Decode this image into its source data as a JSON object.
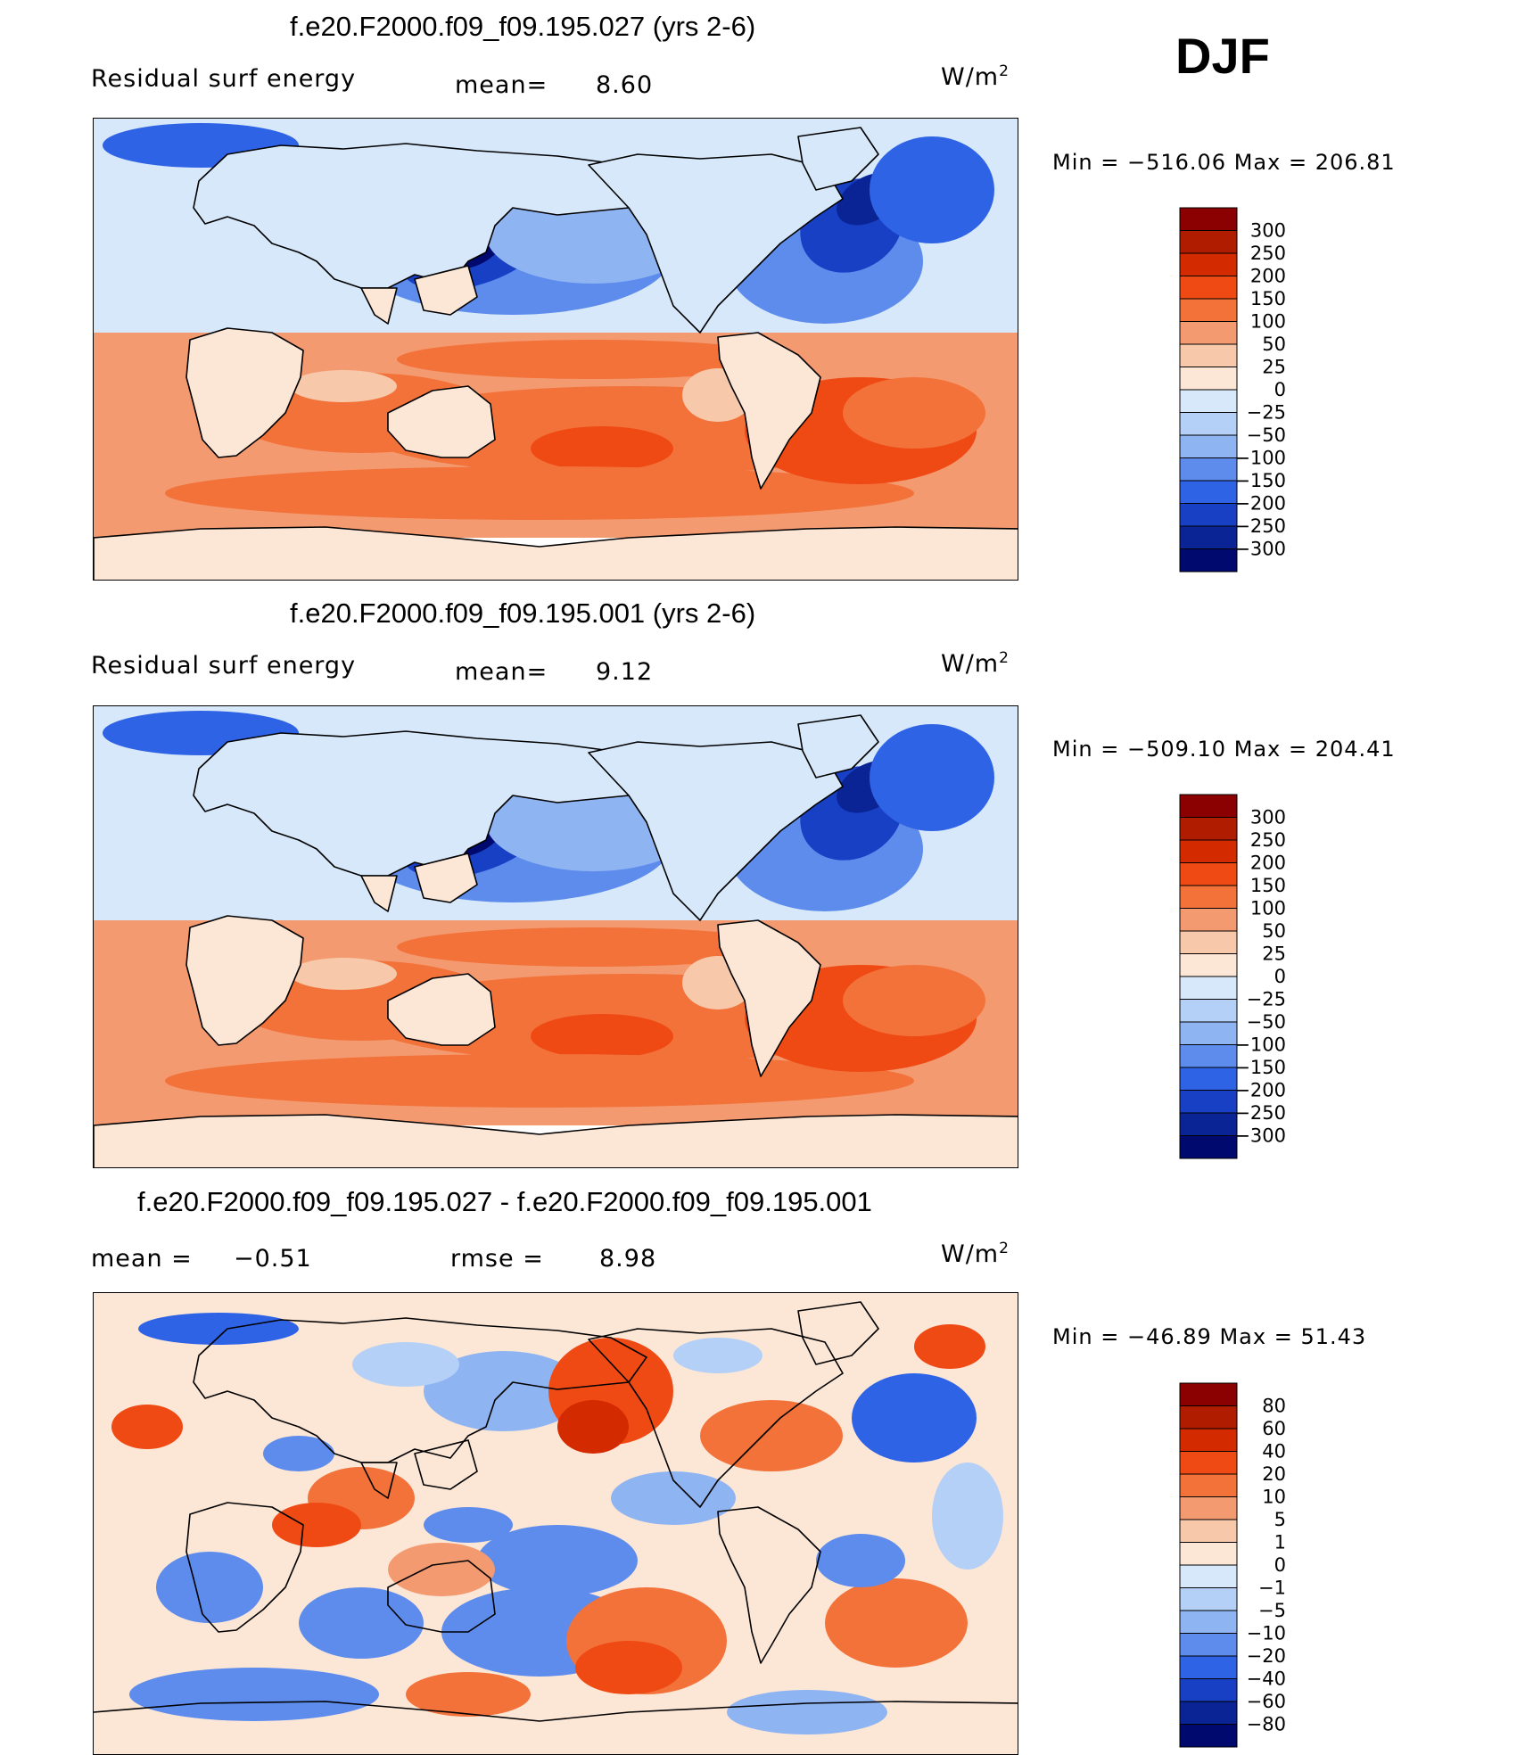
{
  "season": "DJF",
  "chart_data": [
    {
      "type": "heatmap",
      "title": "f.e20.F2000.f09_f09.195.027 (yrs 2-6)",
      "variable": "Residual surf energy",
      "stat1_label": "mean=",
      "stat1_value": "8.60",
      "units_base": "W/m",
      "units_exp": "2",
      "min_label": "Min",
      "min_value": "−516.06",
      "max_label": "Max",
      "max_value": "206.81",
      "colorbar_labels": [
        "300",
        "250",
        "200",
        "150",
        "100",
        "50",
        "25",
        "0",
        "−25",
        "−50",
        "−100",
        "−150",
        "−200",
        "−250",
        "−300"
      ],
      "colors": [
        "#8b0000",
        "#b01c00",
        "#d42a00",
        "#f04a14",
        "#f2723a",
        "#f49a70",
        "#f8c8ab",
        "#fce6d6",
        "#d6e8fa",
        "#b4d0f7",
        "#8fb4f2",
        "#5d8ced",
        "#2f63e6",
        "#1740c4",
        "#0a2496",
        "#000a6e"
      ]
    },
    {
      "type": "heatmap",
      "title": "f.e20.F2000.f09_f09.195.001 (yrs 2-6)",
      "variable": "Residual surf energy",
      "stat1_label": "mean=",
      "stat1_value": "9.12",
      "units_base": "W/m",
      "units_exp": "2",
      "min_label": "Min",
      "min_value": "−509.10",
      "max_label": "Max",
      "max_value": "204.41",
      "colorbar_labels": [
        "300",
        "250",
        "200",
        "150",
        "100",
        "50",
        "25",
        "0",
        "−25",
        "−50",
        "−100",
        "−150",
        "−200",
        "−250",
        "−300"
      ],
      "colors": [
        "#8b0000",
        "#b01c00",
        "#d42a00",
        "#f04a14",
        "#f2723a",
        "#f49a70",
        "#f8c8ab",
        "#fce6d6",
        "#d6e8fa",
        "#b4d0f7",
        "#8fb4f2",
        "#5d8ced",
        "#2f63e6",
        "#1740c4",
        "#0a2496",
        "#000a6e"
      ]
    },
    {
      "type": "heatmap",
      "title": "f.e20.F2000.f09_f09.195.027 - f.e20.F2000.f09_f09.195.001",
      "stat1_label": "mean =",
      "stat1_value": "−0.51",
      "stat2_label": "rmse =",
      "stat2_value": "8.98",
      "units_base": "W/m",
      "units_exp": "2",
      "min_label": "Min",
      "min_value": "−46.89",
      "max_label": "Max",
      "max_value": "51.43",
      "colorbar_labels": [
        "80",
        "60",
        "40",
        "20",
        "10",
        "5",
        "1",
        "0",
        "−1",
        "−5",
        "−10",
        "−20",
        "−40",
        "−60",
        "−80"
      ],
      "colors": [
        "#8b0000",
        "#b01c00",
        "#d42a00",
        "#f04a14",
        "#f2723a",
        "#f49a70",
        "#f8c8ab",
        "#fce6d6",
        "#d6e8fa",
        "#b4d0f7",
        "#8fb4f2",
        "#5d8ced",
        "#2f63e6",
        "#1740c4",
        "#0a2496",
        "#000a6e"
      ]
    }
  ]
}
